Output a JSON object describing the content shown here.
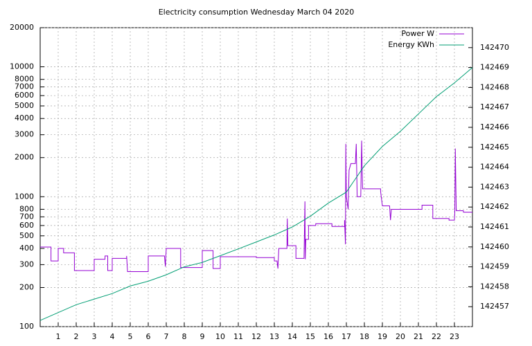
{
  "chart_data": {
    "type": "line",
    "title": "Electricity consumption Wednesday March 04 2020",
    "xlim": [
      0,
      24
    ],
    "xticks": [
      1,
      2,
      3,
      4,
      5,
      6,
      7,
      8,
      9,
      10,
      11,
      12,
      13,
      14,
      15,
      16,
      17,
      18,
      19,
      20,
      21,
      22,
      23
    ],
    "ylim": [
      100,
      20000
    ],
    "yticks": [
      100,
      200,
      300,
      400,
      500,
      600,
      700,
      800,
      1000,
      2000,
      3000,
      4000,
      5000,
      6000,
      7000,
      8000,
      10000,
      20000
    ],
    "ylog": true,
    "y2lim": [
      142456,
      142471
    ],
    "y2ticks": [
      142457,
      142458,
      142459,
      142460,
      142461,
      142462,
      142463,
      142464,
      142465,
      142466,
      142467,
      142468,
      142469,
      142470
    ],
    "grid": true,
    "legend": "top-right",
    "series": [
      {
        "name": "Power W",
        "color": "#9400d3",
        "x": [
          0,
          0.6,
          0.6,
          1.0,
          1.0,
          1.3,
          1.3,
          1.9,
          1.9,
          3.0,
          3.0,
          3.6,
          3.6,
          3.75,
          3.75,
          4.0,
          4.0,
          4.8,
          4.8,
          4.85,
          6.0,
          6.0,
          6.9,
          6.95,
          7.0,
          7.8,
          7.8,
          9.0,
          9.0,
          9.6,
          9.6,
          10.0,
          10.0,
          12.0,
          12.0,
          13.0,
          13.0,
          13.15,
          13.2,
          13.25,
          13.7,
          13.72,
          13.75,
          14.2,
          14.2,
          14.65,
          14.7,
          14.72,
          14.75,
          14.9,
          14.9,
          15.3,
          15.3,
          16.2,
          16.2,
          16.9,
          16.9,
          16.95,
          16.97,
          17.0,
          17.1,
          17.15,
          17.25,
          17.5,
          17.55,
          17.6,
          17.8,
          17.85,
          17.9,
          18.9,
          18.9,
          19.0,
          19.4,
          19.45,
          19.5,
          21.2,
          21.2,
          21.8,
          21.8,
          22.7,
          22.7,
          23.0,
          23.02,
          23.05,
          23.08,
          23.1,
          23.5,
          23.5,
          24.0
        ],
        "values": [
          410,
          410,
          320,
          320,
          400,
          400,
          370,
          370,
          270,
          270,
          330,
          330,
          350,
          350,
          270,
          270,
          335,
          335,
          350,
          265,
          265,
          350,
          350,
          290,
          400,
          400,
          285,
          285,
          385,
          385,
          280,
          280,
          345,
          345,
          340,
          340,
          320,
          320,
          280,
          400,
          400,
          680,
          420,
          420,
          335,
          335,
          920,
          330,
          470,
          470,
          600,
          600,
          620,
          620,
          590,
          590,
          660,
          430,
          2550,
          1000,
          800,
          1600,
          1800,
          1800,
          2550,
          1000,
          1000,
          2700,
          1150,
          1150,
          1100,
          850,
          850,
          660,
          800,
          800,
          860,
          860,
          680,
          680,
          660,
          660,
          750,
          2350,
          1200,
          780,
          780,
          760,
          760
        ]
      },
      {
        "name": "Energy KWh",
        "color": "#009e73",
        "axis": "y2",
        "x": [
          0,
          2,
          4,
          5,
          6,
          7,
          8,
          9,
          10,
          11,
          12,
          13,
          14,
          15,
          16,
          17,
          18,
          19,
          20,
          21,
          22,
          23,
          24
        ],
        "values": [
          142456.31,
          142457.1,
          142457.66,
          142458.04,
          142458.28,
          142458.6,
          142459.0,
          142459.22,
          142459.56,
          142459.9,
          142460.25,
          142460.6,
          142461.0,
          142461.54,
          142462.2,
          142462.75,
          142464.07,
          142465.04,
          142465.8,
          142466.67,
          142467.54,
          142468.23,
          142469.0
        ]
      }
    ]
  }
}
